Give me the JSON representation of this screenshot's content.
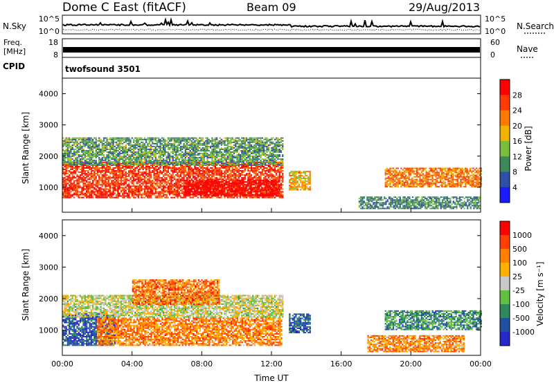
{
  "header": {
    "station": "Dome C East (fitACF)",
    "beam": "Beam 09",
    "date": "29/Aug/2013"
  },
  "noise_panel": {
    "left_label": "N.Sky",
    "right_label": "N.Search",
    "left_ticks": [
      "10^5",
      "10^0"
    ],
    "right_ticks": [
      "10^5",
      "10^0"
    ]
  },
  "freq_panel": {
    "left_label_1": "Freq.",
    "left_label_2": "[MHz]",
    "right_label": "Nave",
    "left_ticks": [
      "18",
      "8"
    ],
    "right_ticks": [
      "60",
      "0"
    ]
  },
  "cpid": {
    "label": "CPID",
    "value": "twofsound 3501"
  },
  "colors": {
    "power_scale": [
      "#1a1aff",
      "#3050a8",
      "#3c8a5a",
      "#78be3c",
      "#f0b400",
      "#ff7800",
      "#ff3c00",
      "#ff0000"
    ],
    "velocity_scale": [
      "#2828c8",
      "#2050a0",
      "#2e8a5a",
      "#60c040",
      "#c8c8c8",
      "#ffb000",
      "#ff8000",
      "#ff4000",
      "#ff0000"
    ]
  },
  "chart_data": [
    {
      "type": "heatmap",
      "name": "power",
      "ylabel": "Slant Range [km]",
      "ylim": [
        200,
        4500
      ],
      "yticks": [
        "1000",
        "2000",
        "3000",
        "4000"
      ],
      "xlim": [
        "00:00",
        "24:00"
      ],
      "colorbar_label": "Power [dB]",
      "colorbar_ticks": [
        "28",
        "24",
        "20",
        "16",
        "12",
        "8",
        "4"
      ],
      "bands": [
        {
          "t0": 0.0,
          "t1": 12.6,
          "r0": 650,
          "r1": 1800,
          "level": 0.85
        },
        {
          "t0": 7.0,
          "t1": 12.4,
          "r0": 700,
          "r1": 1200,
          "level": 1.0
        },
        {
          "t0": 0.0,
          "t1": 12.6,
          "r0": 1700,
          "r1": 2600,
          "level": 0.35
        },
        {
          "t0": 13.0,
          "t1": 14.2,
          "r0": 900,
          "r1": 1500,
          "level": 0.6
        },
        {
          "t0": 18.5,
          "t1": 24.0,
          "r0": 1000,
          "r1": 1600,
          "level": 0.7
        },
        {
          "t0": 17.0,
          "t1": 24.0,
          "r0": 300,
          "r1": 700,
          "level": 0.3
        }
      ]
    },
    {
      "type": "heatmap",
      "name": "velocity",
      "ylabel": "Slant Range [km]",
      "ylim": [
        200,
        4500
      ],
      "yticks": [
        "1000",
        "2000",
        "3000",
        "4000"
      ],
      "xlim": [
        "00:00",
        "24:00"
      ],
      "xticks": [
        "00:00",
        "04:00",
        "08:00",
        "12:00",
        "16:00",
        "20:00",
        "00:00"
      ],
      "xlabel": "Time UT",
      "colorbar_label": "Velocity [m s⁻¹]",
      "colorbar_ticks": [
        "1000",
        "500",
        "100",
        "25",
        "-25",
        "-100",
        "-500",
        "-1000"
      ],
      "bands": [
        {
          "t0": 0.0,
          "t1": 3.0,
          "r0": 500,
          "r1": 1500,
          "level": 0.15
        },
        {
          "t0": 2.0,
          "t1": 12.6,
          "r0": 500,
          "r1": 1400,
          "level": 0.72
        },
        {
          "t0": 0.0,
          "t1": 12.6,
          "r0": 1400,
          "r1": 2100,
          "level": 0.5
        },
        {
          "t0": 4.0,
          "t1": 9.0,
          "r0": 1800,
          "r1": 2600,
          "level": 0.75
        },
        {
          "t0": 13.0,
          "t1": 14.2,
          "r0": 900,
          "r1": 1500,
          "level": 0.2
        },
        {
          "t0": 18.5,
          "t1": 24.0,
          "r0": 1000,
          "r1": 1600,
          "level": 0.3
        },
        {
          "t0": 17.5,
          "t1": 23.0,
          "r0": 300,
          "r1": 800,
          "level": 0.7
        }
      ]
    }
  ]
}
